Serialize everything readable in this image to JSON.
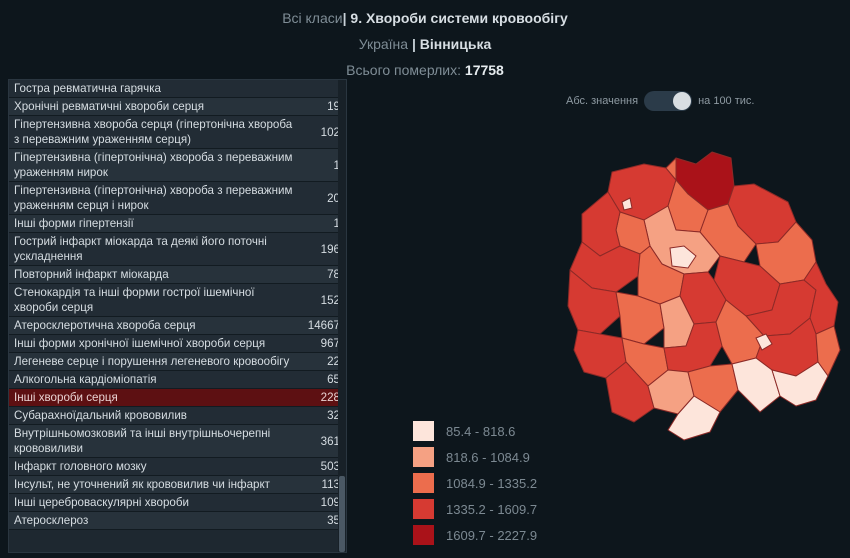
{
  "header": {
    "all_classes": "Всі класи",
    "separator": "|",
    "class_title": "9. Хвороби системи кровообігу",
    "country": "Україна",
    "region": "Вінницька",
    "total_label": "Всього померлих:",
    "total_value": "17758"
  },
  "toggle": {
    "left_label": "Абс. значення",
    "right_label": "на 100 тис.",
    "state": "on"
  },
  "table": {
    "rows": [
      {
        "name": "Гостра ревматична гарячка",
        "value": ""
      },
      {
        "name": "Хронічні ревматичні хвороби серця",
        "value": "19"
      },
      {
        "name": "Гіпертензивна хвороба серця (гіпертонічна хвороба з переважним ураженням серця)",
        "value": "102"
      },
      {
        "name": "Гіпертензивна (гіпертонічна) хвороба з переважним ураженням нирок",
        "value": "1"
      },
      {
        "name": "Гіпертензивна (гіпертонічна) хвороба з переважним ураженням серця і нирок",
        "value": "20"
      },
      {
        "name": "Інші форми гіпертензії",
        "value": "1"
      },
      {
        "name": "Гострий інфаркт міокарда та деякі його поточні ускладнення",
        "value": "196"
      },
      {
        "name": "Повторний інфаркт міокарда",
        "value": "78"
      },
      {
        "name": "Стенокардія та інші форми гострої ішемічної хвороби серця",
        "value": "152"
      },
      {
        "name": "Атеросклеротична хвороба серця",
        "value": "14667"
      },
      {
        "name": "Інші форми хронічної ішемічної хвороби серця",
        "value": "967"
      },
      {
        "name": "Легеневе серце і порушення легеневого кровообігу",
        "value": "22"
      },
      {
        "name": "Алкогольна кардіоміопатія",
        "value": "65"
      },
      {
        "name": "Інші хвороби серця",
        "value": "228",
        "selected": true
      },
      {
        "name": "Субарахноїдальний крововилив",
        "value": "32"
      },
      {
        "name": "Внутрішньомозковий та інші внутрішньочерепні крововиливи",
        "value": "361"
      },
      {
        "name": "Інфаркт головного мозку",
        "value": "503"
      },
      {
        "name": "Інсульт, не уточнений як крововилив чи інфаркт",
        "value": "113"
      },
      {
        "name": "Інші цереброваскулярні хвороби",
        "value": "109"
      },
      {
        "name": "Атеросклероз",
        "value": "35"
      }
    ]
  },
  "legend": [
    {
      "label": "85.4 - 818.6",
      "color": "#fde5db"
    },
    {
      "label": "818.6 - 1084.9",
      "color": "#f5a183"
    },
    {
      "label": "1084.9 - 1335.2",
      "color": "#ec6d4d"
    },
    {
      "label": "1335.2 - 1609.7",
      "color": "#d63a32"
    },
    {
      "label": "1609.7 - 2227.9",
      "color": "#aa1219"
    }
  ],
  "map": {
    "districts": [
      {
        "level": 4
      },
      {
        "level": 3
      },
      {
        "level": 2
      },
      {
        "level": 3
      },
      {
        "level": 2
      },
      {
        "level": 1
      },
      {
        "level": 2
      },
      {
        "level": 3
      },
      {
        "level": 2
      },
      {
        "level": 3
      },
      {
        "level": 3
      },
      {
        "level": 2
      },
      {
        "level": 3
      },
      {
        "level": 3
      },
      {
        "level": 2
      },
      {
        "level": 1
      },
      {
        "level": 3
      },
      {
        "level": 3
      },
      {
        "level": 3
      },
      {
        "level": 2
      },
      {
        "level": 3
      },
      {
        "level": 2
      },
      {
        "level": 3
      },
      {
        "level": 2
      },
      {
        "level": 3
      },
      {
        "level": 1
      },
      {
        "level": 2
      },
      {
        "level": 0
      },
      {
        "level": 0
      },
      {
        "level": 0
      }
    ]
  }
}
